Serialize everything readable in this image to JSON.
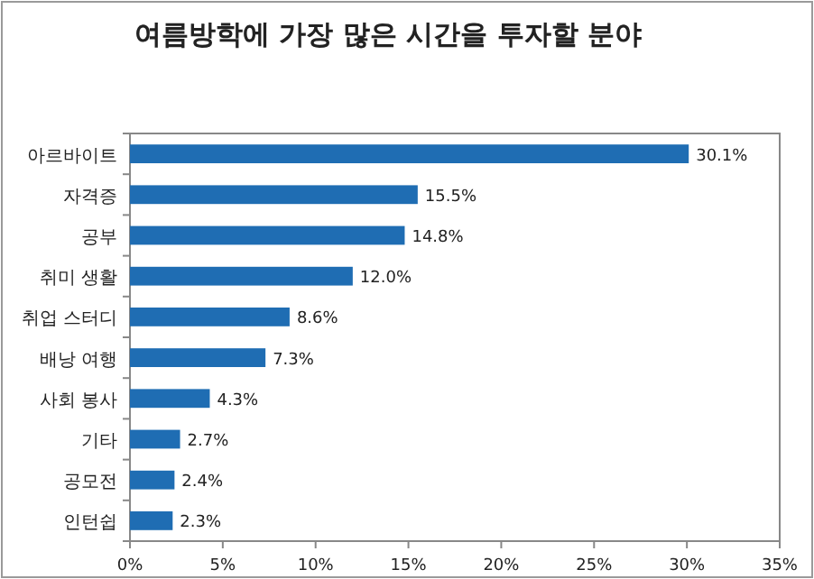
{
  "chart_data": {
    "type": "bar",
    "orientation": "horizontal",
    "title": "여름방학에 가장 많은 시간을 투자할 분야",
    "categories": [
      "아르바이트",
      "자격증",
      "공부",
      "취미 생활",
      "취업 스터디",
      "배낭 여행",
      "사회 봉사",
      "기타",
      "공모전",
      "인턴쉽"
    ],
    "values": [
      30.1,
      15.5,
      14.8,
      12.0,
      8.6,
      7.3,
      4.3,
      2.7,
      2.4,
      2.3
    ],
    "value_labels": [
      "30.1%",
      "15.5%",
      "14.8%",
      "12.0%",
      "8.6%",
      "7.3%",
      "4.3%",
      "2.7%",
      "2.4%",
      "2.3%"
    ],
    "color": "#1f6db3",
    "xlim": [
      0,
      35
    ],
    "xticks": [
      {
        "value": 0,
        "label": "0%"
      },
      {
        "value": 5,
        "label": "5%"
      },
      {
        "value": 10,
        "label": "10%"
      },
      {
        "value": 15,
        "label": "15%"
      },
      {
        "value": 20,
        "label": "20%"
      },
      {
        "value": 25,
        "label": "25%"
      },
      {
        "value": 30,
        "label": "30%"
      },
      {
        "value": 35,
        "label": "35%"
      }
    ],
    "tick_labels": "xy"
  }
}
